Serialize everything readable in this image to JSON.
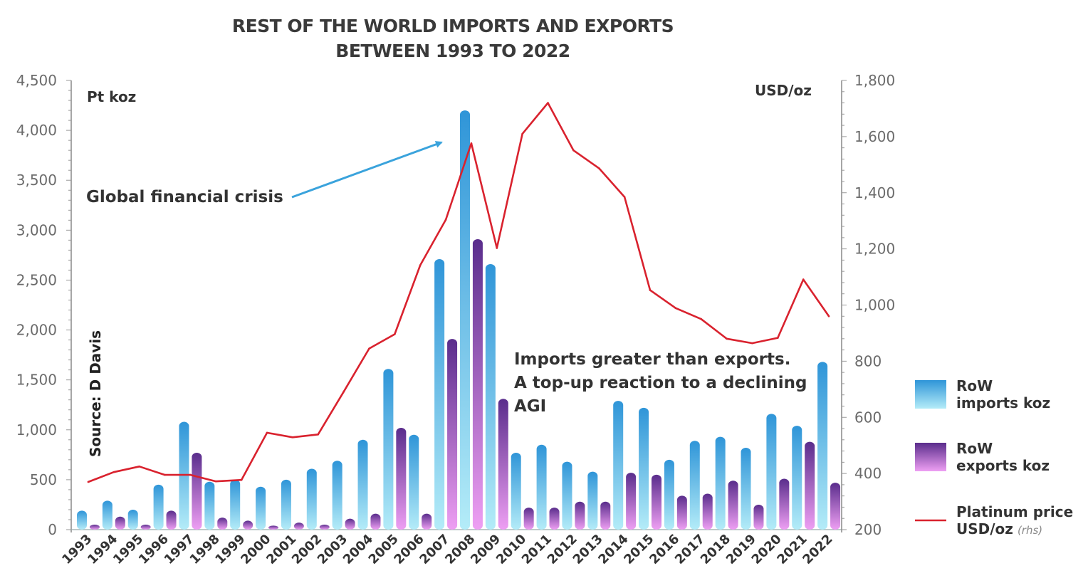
{
  "chart_data": {
    "type": "bar",
    "title": [
      "REST OF THE WORLD IMPORTS AND EXPORTS",
      "BETWEEN 1993 TO 2022"
    ],
    "categories": [
      "1993",
      "1994",
      "1995",
      "1996",
      "1997",
      "1998",
      "1999",
      "2000",
      "2001",
      "2002",
      "2003",
      "2004",
      "2005",
      "2006",
      "2007",
      "2008",
      "2009",
      "2010",
      "2011",
      "2012",
      "2013",
      "2014",
      "2015",
      "2016",
      "2017",
      "2018",
      "2019",
      "2020",
      "2021",
      "2022"
    ],
    "series": [
      {
        "name": "RoW imports koz",
        "axis": "left",
        "kind": "bar",
        "color_top": "#2f95d8",
        "color_bottom": "#a8e6f7",
        "values": [
          190,
          290,
          200,
          450,
          1080,
          480,
          500,
          430,
          500,
          610,
          690,
          900,
          1610,
          950,
          2710,
          4200,
          2660,
          770,
          850,
          680,
          580,
          1290,
          1220,
          700,
          890,
          930,
          820,
          1160,
          1040,
          1680
        ]
      },
      {
        "name": "RoW exports koz",
        "axis": "left",
        "kind": "bar",
        "color_top": "#5a2d8c",
        "color_bottom": "#e9a0f0",
        "values": [
          50,
          130,
          50,
          190,
          770,
          120,
          90,
          40,
          70,
          50,
          110,
          160,
          1020,
          160,
          1910,
          2910,
          1310,
          220,
          220,
          280,
          280,
          570,
          550,
          340,
          360,
          490,
          250,
          510,
          880,
          470
        ]
      },
      {
        "name": "Platinum price USD/oz",
        "axis": "right",
        "kind": "line",
        "color": "#d9222e",
        "values": [
          370,
          405,
          425,
          395,
          395,
          372,
          377,
          545,
          529,
          539,
          691,
          845,
          896,
          1142,
          1304,
          1576,
          1203,
          1610,
          1720,
          1551,
          1487,
          1385,
          1053,
          989,
          950,
          880,
          864,
          883,
          1091,
          960
        ]
      }
    ],
    "ylabel_left": "Pt koz",
    "ylabel_right": "USD/oz",
    "ylim_left": [
      0,
      4500
    ],
    "ylim_right": [
      200,
      1800
    ],
    "yticks_left": [
      "0",
      "500",
      "1,000",
      "1,500",
      "2,000",
      "2,500",
      "3,000",
      "3,500",
      "4,000",
      "4,500"
    ],
    "yticks_right": [
      "200",
      "400",
      "600",
      "800",
      "1,000",
      "1,200",
      "1,400",
      "1,600",
      "1,800"
    ],
    "grid": false,
    "legend_position": "right",
    "legend": [
      {
        "line1": "RoW",
        "line2": "imports koz"
      },
      {
        "line1": "RoW",
        "line2": "exports koz"
      },
      {
        "line1": "Platinum price",
        "line2": "USD/oz",
        "suffix": "(rhs)"
      }
    ],
    "annotations": {
      "crisis": "Global financial crisis",
      "imports_note": [
        "Imports greater than exports.",
        "A top-up reaction to a declining",
        "AGI"
      ],
      "source": "Source: D Davis"
    },
    "arrow_color": "#3aa3dc"
  }
}
